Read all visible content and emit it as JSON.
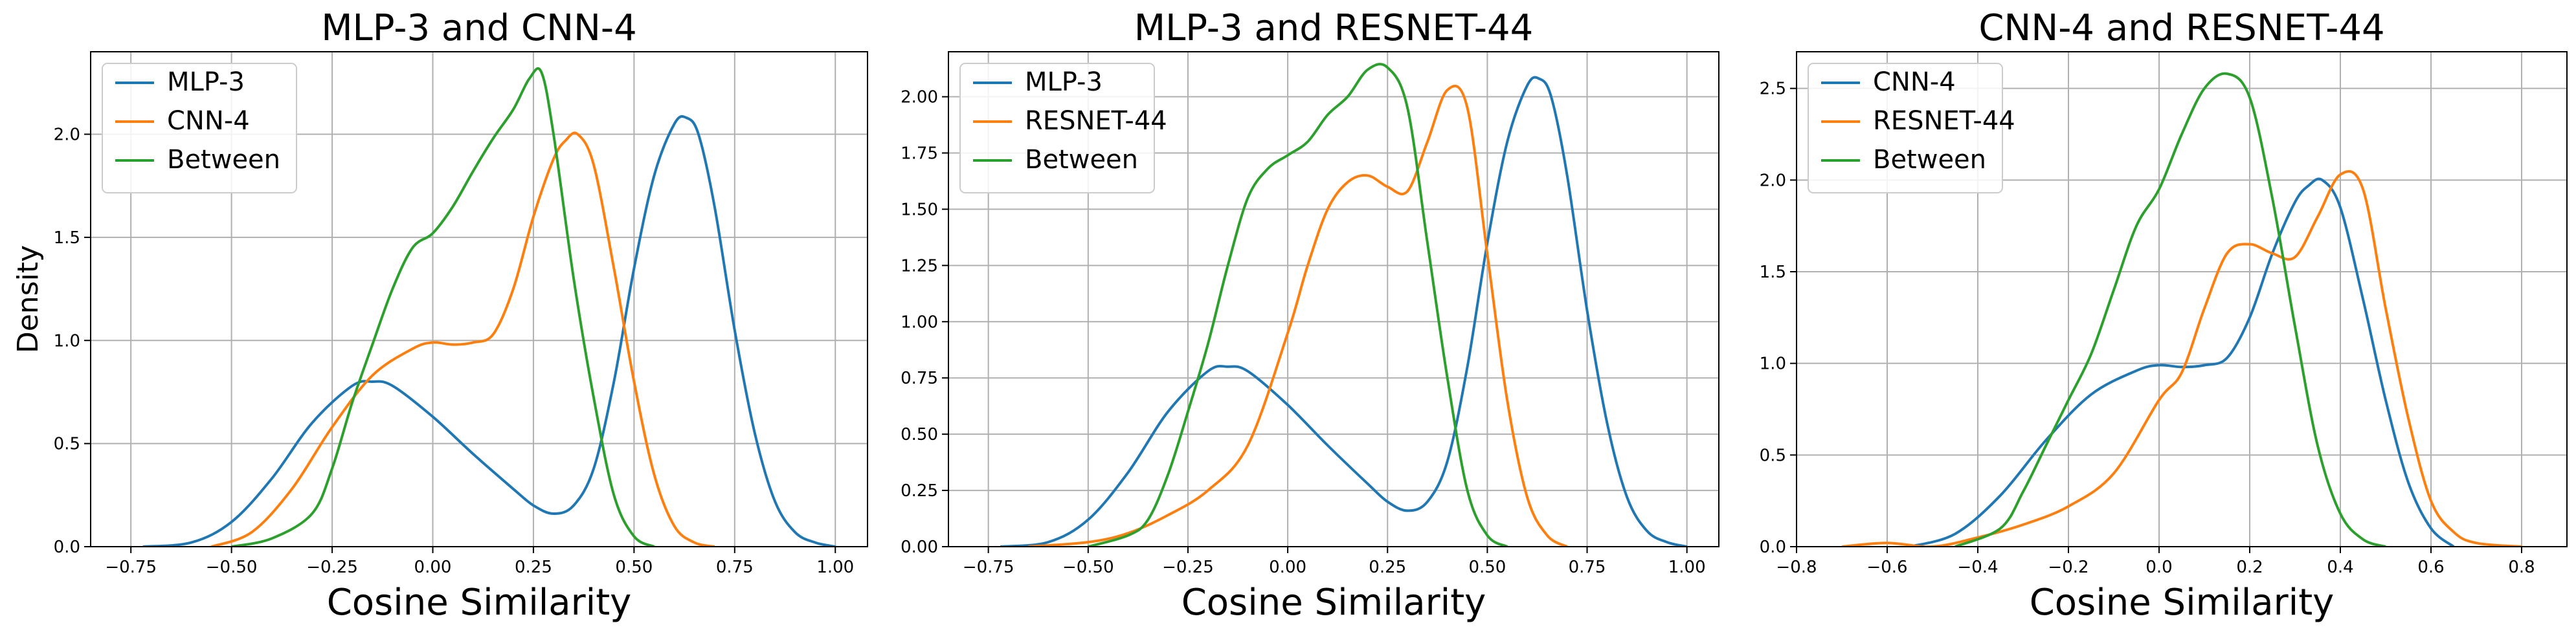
{
  "chart_data": [
    {
      "type": "line",
      "title": "MLP-3 and CNN-4",
      "xlabel": "Cosine Similarity",
      "ylabel": "Density",
      "xlim": [
        -0.85,
        1.08
      ],
      "ylim": [
        0,
        2.4
      ],
      "xticks": [
        -0.75,
        -0.5,
        -0.25,
        0.0,
        0.25,
        0.5,
        0.75,
        1.0
      ],
      "xtick_labels": [
        "−0.75",
        "−0.50",
        "−0.25",
        "0.00",
        "0.25",
        "0.50",
        "0.75",
        "1.00"
      ],
      "yticks": [
        0.0,
        0.5,
        1.0,
        1.5,
        2.0
      ],
      "ytick_labels": [
        "0.0",
        "0.5",
        "1.0",
        "1.5",
        "2.0"
      ],
      "grid": true,
      "legend_position": "top-left",
      "series": [
        {
          "name": "MLP-3",
          "color": "#1f77b4",
          "x": [
            -0.72,
            -0.6,
            -0.5,
            -0.4,
            -0.3,
            -0.2,
            -0.15,
            -0.1,
            0.0,
            0.1,
            0.2,
            0.25,
            0.3,
            0.35,
            0.4,
            0.45,
            0.5,
            0.55,
            0.6,
            0.63,
            0.66,
            0.7,
            0.75,
            0.8,
            0.85,
            0.9,
            0.95,
            1.0
          ],
          "y": [
            0.0,
            0.02,
            0.12,
            0.33,
            0.6,
            0.78,
            0.8,
            0.78,
            0.63,
            0.45,
            0.28,
            0.2,
            0.16,
            0.2,
            0.38,
            0.8,
            1.35,
            1.8,
            2.05,
            2.08,
            2.0,
            1.65,
            1.05,
            0.55,
            0.22,
            0.07,
            0.02,
            0.0
          ]
        },
        {
          "name": "CNN-4",
          "color": "#ff7f0e",
          "x": [
            -0.55,
            -0.45,
            -0.35,
            -0.25,
            -0.15,
            -0.05,
            0.0,
            0.05,
            0.1,
            0.15,
            0.2,
            0.25,
            0.3,
            0.33,
            0.36,
            0.4,
            0.45,
            0.5,
            0.55,
            0.6,
            0.65,
            0.7
          ],
          "y": [
            0.0,
            0.07,
            0.28,
            0.58,
            0.83,
            0.96,
            0.99,
            0.98,
            0.99,
            1.03,
            1.25,
            1.6,
            1.88,
            1.97,
            2.0,
            1.85,
            1.35,
            0.8,
            0.35,
            0.1,
            0.02,
            0.0
          ]
        },
        {
          "name": "Between",
          "color": "#2ca02c",
          "x": [
            -0.5,
            -0.4,
            -0.3,
            -0.25,
            -0.2,
            -0.15,
            -0.1,
            -0.05,
            0.0,
            0.05,
            0.1,
            0.15,
            0.2,
            0.24,
            0.27,
            0.3,
            0.35,
            0.4,
            0.45,
            0.5,
            0.55
          ],
          "y": [
            0.0,
            0.04,
            0.16,
            0.38,
            0.7,
            0.98,
            1.25,
            1.45,
            1.52,
            1.65,
            1.82,
            1.98,
            2.12,
            2.27,
            2.3,
            2.0,
            1.3,
            0.72,
            0.25,
            0.05,
            0.0
          ]
        }
      ]
    },
    {
      "type": "line",
      "title": "MLP-3 and RESNET-44",
      "xlabel": "Cosine Similarity",
      "ylabel": "",
      "xlim": [
        -0.85,
        1.08
      ],
      "ylim": [
        0,
        2.2
      ],
      "xticks": [
        -0.75,
        -0.5,
        -0.25,
        0.0,
        0.25,
        0.5,
        0.75,
        1.0
      ],
      "xtick_labels": [
        "−0.75",
        "−0.50",
        "−0.25",
        "0.00",
        "0.25",
        "0.50",
        "0.75",
        "1.00"
      ],
      "yticks": [
        0.0,
        0.25,
        0.5,
        0.75,
        1.0,
        1.25,
        1.5,
        1.75,
        2.0
      ],
      "ytick_labels": [
        "0.00",
        "0.25",
        "0.50",
        "0.75",
        "1.00",
        "1.25",
        "1.50",
        "1.75",
        "2.00"
      ],
      "grid": true,
      "legend_position": "top-left",
      "series": [
        {
          "name": "MLP-3",
          "color": "#1f77b4",
          "x": [
            -0.72,
            -0.6,
            -0.5,
            -0.4,
            -0.3,
            -0.2,
            -0.15,
            -0.1,
            0.0,
            0.1,
            0.2,
            0.25,
            0.3,
            0.35,
            0.4,
            0.45,
            0.5,
            0.55,
            0.6,
            0.63,
            0.66,
            0.7,
            0.75,
            0.8,
            0.85,
            0.9,
            0.95,
            1.0
          ],
          "y": [
            0.0,
            0.02,
            0.12,
            0.33,
            0.6,
            0.78,
            0.8,
            0.78,
            0.63,
            0.45,
            0.28,
            0.2,
            0.16,
            0.2,
            0.38,
            0.8,
            1.35,
            1.8,
            2.05,
            2.08,
            2.0,
            1.65,
            1.05,
            0.55,
            0.22,
            0.07,
            0.02,
            0.0
          ]
        },
        {
          "name": "RESNET-44",
          "color": "#ff7f0e",
          "x": [
            -0.65,
            -0.5,
            -0.4,
            -0.3,
            -0.2,
            -0.1,
            0.0,
            0.05,
            0.1,
            0.15,
            0.2,
            0.25,
            0.3,
            0.35,
            0.4,
            0.45,
            0.5,
            0.55,
            0.6,
            0.65,
            0.7
          ],
          "y": [
            0.0,
            0.02,
            0.06,
            0.14,
            0.25,
            0.45,
            0.95,
            1.25,
            1.5,
            1.62,
            1.65,
            1.6,
            1.58,
            1.8,
            2.03,
            1.95,
            1.3,
            0.65,
            0.22,
            0.05,
            0.0
          ]
        },
        {
          "name": "Between",
          "color": "#2ca02c",
          "x": [
            -0.5,
            -0.4,
            -0.35,
            -0.3,
            -0.25,
            -0.2,
            -0.15,
            -0.1,
            -0.05,
            0.0,
            0.05,
            0.1,
            0.15,
            0.2,
            0.25,
            0.3,
            0.35,
            0.4,
            0.45,
            0.5,
            0.55
          ],
          "y": [
            0.0,
            0.05,
            0.12,
            0.32,
            0.6,
            0.9,
            1.25,
            1.55,
            1.68,
            1.74,
            1.8,
            1.92,
            2.0,
            2.12,
            2.13,
            1.95,
            1.35,
            0.75,
            0.25,
            0.05,
            0.0
          ]
        }
      ]
    },
    {
      "type": "line",
      "title": "CNN-4 and RESNET-44",
      "xlabel": "Cosine Similarity",
      "ylabel": "",
      "xlim": [
        -0.8,
        0.9
      ],
      "ylim": [
        0,
        2.7
      ],
      "xticks": [
        -0.8,
        -0.6,
        -0.4,
        -0.2,
        0.0,
        0.2,
        0.4,
        0.6,
        0.8
      ],
      "xtick_labels": [
        "−0.8",
        "−0.6",
        "−0.4",
        "−0.2",
        "0.0",
        "0.2",
        "0.4",
        "0.6",
        "0.8"
      ],
      "yticks": [
        0.0,
        0.5,
        1.0,
        1.5,
        2.0,
        2.5
      ],
      "ytick_labels": [
        "0.0",
        "0.5",
        "1.0",
        "1.5",
        "2.0",
        "2.5"
      ],
      "grid": true,
      "legend_position": "top-left",
      "series": [
        {
          "name": "CNN-4",
          "color": "#1f77b4",
          "x": [
            -0.55,
            -0.45,
            -0.35,
            -0.25,
            -0.15,
            -0.05,
            0.0,
            0.05,
            0.1,
            0.15,
            0.2,
            0.25,
            0.3,
            0.33,
            0.36,
            0.4,
            0.45,
            0.5,
            0.55,
            0.6,
            0.65
          ],
          "y": [
            0.0,
            0.07,
            0.28,
            0.58,
            0.83,
            0.96,
            0.99,
            0.98,
            0.99,
            1.03,
            1.25,
            1.6,
            1.88,
            1.97,
            2.0,
            1.85,
            1.35,
            0.8,
            0.35,
            0.1,
            0.0
          ]
        },
        {
          "name": "RESNET-44",
          "color": "#ff7f0e",
          "x": [
            -0.7,
            -0.6,
            -0.5,
            -0.4,
            -0.3,
            -0.2,
            -0.1,
            0.0,
            0.05,
            0.1,
            0.15,
            0.2,
            0.25,
            0.3,
            0.35,
            0.4,
            0.45,
            0.5,
            0.55,
            0.6,
            0.65,
            0.7,
            0.8
          ],
          "y": [
            0.0,
            0.02,
            0.0,
            0.05,
            0.12,
            0.22,
            0.4,
            0.8,
            0.95,
            1.3,
            1.6,
            1.65,
            1.6,
            1.58,
            1.8,
            2.03,
            1.95,
            1.3,
            0.7,
            0.25,
            0.08,
            0.02,
            0.0
          ]
        },
        {
          "name": "Between",
          "color": "#2ca02c",
          "x": [
            -0.45,
            -0.35,
            -0.3,
            -0.25,
            -0.2,
            -0.15,
            -0.1,
            -0.05,
            0.0,
            0.05,
            0.1,
            0.15,
            0.2,
            0.25,
            0.3,
            0.35,
            0.4,
            0.45,
            0.5
          ],
          "y": [
            0.0,
            0.1,
            0.3,
            0.55,
            0.8,
            1.05,
            1.4,
            1.75,
            1.95,
            2.25,
            2.5,
            2.58,
            2.45,
            1.9,
            1.2,
            0.55,
            0.18,
            0.04,
            0.0
          ]
        }
      ]
    }
  ]
}
